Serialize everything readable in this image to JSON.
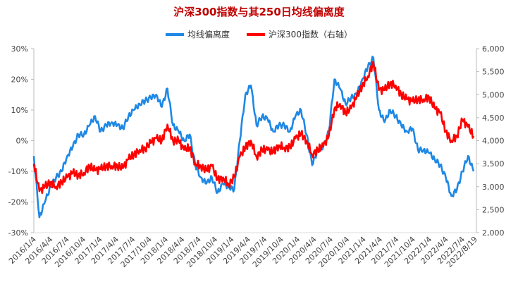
{
  "chart_data": {
    "type": "line",
    "title": "沪深300指数与其250日均线偏离度",
    "legend_position": "top",
    "grid": false,
    "x_tick_labels": [
      "2016/1/4",
      "2016/4/4",
      "2016/7/4",
      "2016/10/4",
      "2017/1/4",
      "2017/4/4",
      "2017/7/4",
      "2017/10/4",
      "2018/1/4",
      "2018/4/4",
      "2018/7/4",
      "2018/10/4",
      "2019/1/4",
      "2019/4/4",
      "2019/7/4",
      "2019/10/4",
      "2020/1/4",
      "2020/4/4",
      "2020/7/4",
      "2020/10/4",
      "2021/1/4",
      "2021/4/4",
      "2021/7/4",
      "2021/10/4",
      "2022/1/4",
      "2022/4/4",
      "2022/7/4",
      "2022/8/19"
    ],
    "x_months": [
      "2016-01",
      "2016-02",
      "2016-03",
      "2016-04",
      "2016-05",
      "2016-06",
      "2016-07",
      "2016-08",
      "2016-09",
      "2016-10",
      "2016-11",
      "2016-12",
      "2017-01",
      "2017-02",
      "2017-03",
      "2017-04",
      "2017-05",
      "2017-06",
      "2017-07",
      "2017-08",
      "2017-09",
      "2017-10",
      "2017-11",
      "2017-12",
      "2018-01",
      "2018-02",
      "2018-03",
      "2018-04",
      "2018-05",
      "2018-06",
      "2018-07",
      "2018-08",
      "2018-09",
      "2018-10",
      "2018-11",
      "2018-12",
      "2019-01",
      "2019-02",
      "2019-03",
      "2019-04",
      "2019-05",
      "2019-06",
      "2019-07",
      "2019-08",
      "2019-09",
      "2019-10",
      "2019-11",
      "2019-12",
      "2020-01",
      "2020-02",
      "2020-03",
      "2020-04",
      "2020-05",
      "2020-06",
      "2020-07",
      "2020-08",
      "2020-09",
      "2020-10",
      "2020-11",
      "2020-12",
      "2021-01",
      "2021-02",
      "2021-03",
      "2021-04",
      "2021-05",
      "2021-06",
      "2021-07",
      "2021-08",
      "2021-09",
      "2021-10",
      "2021-11",
      "2021-12",
      "2022-01",
      "2022-02",
      "2022-03",
      "2022-04",
      "2022-05",
      "2022-06",
      "2022-07",
      "2022-08"
    ],
    "y_left": {
      "ticks": [
        "-30%",
        "-20%",
        "-10%",
        "0%",
        "10%",
        "20%",
        "30%"
      ],
      "range": [
        -30,
        30
      ],
      "unit": "%"
    },
    "y_right": {
      "ticks": [
        "2,000",
        "2,500",
        "3,000",
        "3,500",
        "4,000",
        "4,500",
        "5,000",
        "5,500",
        "6,000"
      ],
      "range": [
        2000,
        6000
      ]
    },
    "series": [
      {
        "name": "均线偏离度",
        "axis": "left",
        "color": "#1e88e5",
        "values": [
          -5,
          -25,
          -20,
          -15,
          -12,
          -10,
          -5,
          -2,
          2,
          2,
          5,
          8,
          3,
          5,
          6,
          5,
          4,
          8,
          10,
          12,
          13,
          14,
          15,
          11,
          17,
          5,
          3,
          0,
          2,
          -8,
          -12,
          -14,
          -12,
          -17,
          -14,
          -15,
          -16,
          0,
          15,
          18,
          5,
          8,
          7,
          3,
          5,
          5,
          3,
          8,
          10,
          2,
          -8,
          -3,
          -2,
          3,
          20,
          17,
          12,
          14,
          15,
          20,
          24,
          27,
          10,
          6,
          10,
          8,
          5,
          3,
          4,
          -3,
          -3,
          -4,
          -6,
          -8,
          -12,
          -18,
          -16,
          -10,
          -5,
          -10
        ]
      },
      {
        "name": "沪深300指数（右轴）",
        "axis": "right",
        "color": "#ff0000",
        "values": [
          3500,
          2900,
          3000,
          3100,
          3000,
          3100,
          3200,
          3300,
          3250,
          3300,
          3450,
          3350,
          3380,
          3450,
          3450,
          3450,
          3400,
          3600,
          3700,
          3800,
          3830,
          3950,
          4050,
          4000,
          4350,
          4000,
          4000,
          3800,
          3850,
          3500,
          3450,
          3350,
          3450,
          3150,
          3200,
          3050,
          3200,
          3650,
          3850,
          4000,
          3650,
          3800,
          3800,
          3750,
          3900,
          3850,
          3850,
          4050,
          4150,
          4000,
          3700,
          3800,
          3880,
          4100,
          4700,
          4800,
          4600,
          4700,
          4950,
          5200,
          5400,
          5700,
          5100,
          5100,
          5250,
          5200,
          5000,
          4900,
          4850,
          4900,
          4900,
          4950,
          4700,
          4600,
          4200,
          4000,
          4100,
          4450,
          4300,
          4100
        ]
      }
    ]
  }
}
